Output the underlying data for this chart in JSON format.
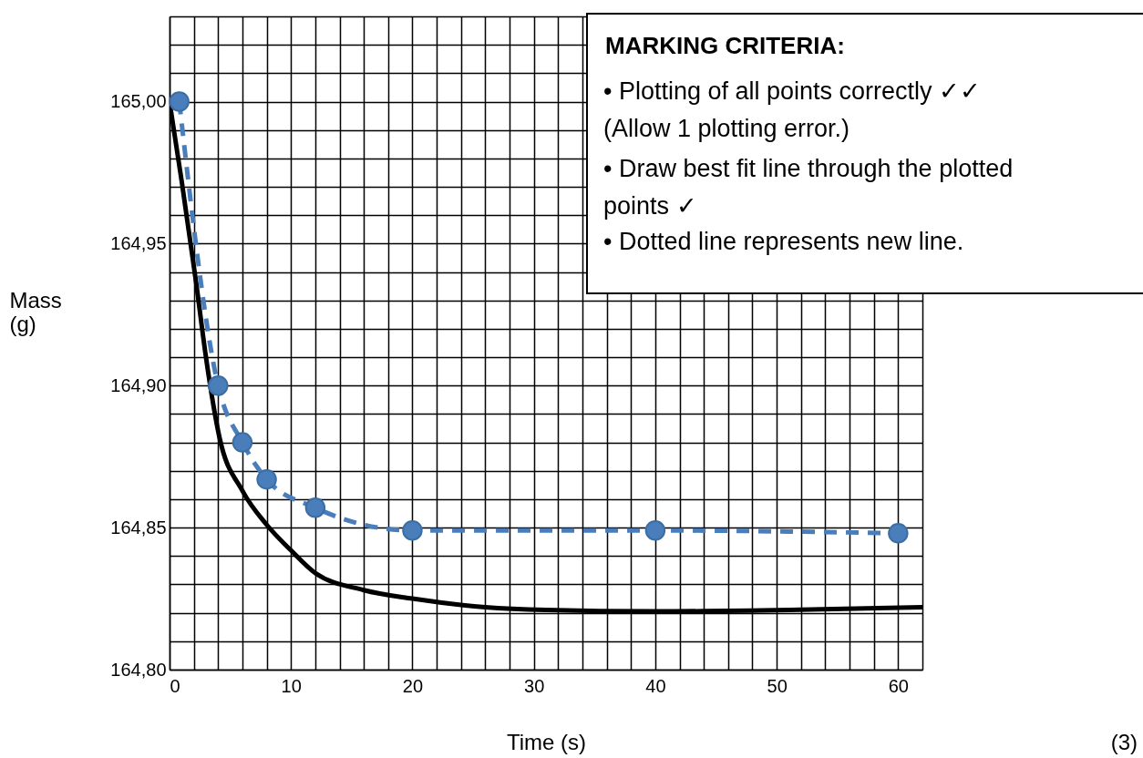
{
  "chart_data": {
    "type": "line",
    "xlabel": "Time (s)",
    "ylabel": "Mass (g)",
    "xlim": [
      0,
      62
    ],
    "ylim": [
      164.8,
      165.03
    ],
    "xticks": [
      0,
      {
        "value": 2,
        "label": null
      },
      {
        "value": 4,
        "label": null
      },
      {
        "value": 6,
        "label": null
      },
      {
        "value": 8,
        "label": null
      },
      10,
      {
        "value": 12,
        "label": null
      },
      {
        "value": 14,
        "label": null
      },
      {
        "value": 16,
        "label": null
      },
      {
        "value": 18,
        "label": null
      },
      20,
      {
        "value": 22,
        "label": null
      },
      {
        "value": 24,
        "label": null
      },
      {
        "value": 26,
        "label": null
      },
      {
        "value": 28,
        "label": null
      },
      30,
      {
        "value": 32,
        "label": null
      },
      {
        "value": 34,
        "label": null
      },
      {
        "value": 36,
        "label": null
      },
      {
        "value": 38,
        "label": null
      },
      40,
      {
        "value": 42,
        "label": null
      },
      {
        "value": 44,
        "label": null
      },
      {
        "value": 46,
        "label": null
      },
      {
        "value": 48,
        "label": null
      },
      50,
      {
        "value": 52,
        "label": null
      },
      {
        "value": 54,
        "label": null
      },
      {
        "value": 56,
        "label": null
      },
      {
        "value": 58,
        "label": null
      },
      60,
      {
        "value": 62,
        "label": null
      }
    ],
    "yticks": [
      {
        "value": 164.8,
        "label": "164,80"
      },
      {
        "value": 164.81,
        "label": null
      },
      {
        "value": 164.82,
        "label": null
      },
      {
        "value": 164.83,
        "label": null
      },
      {
        "value": 164.84,
        "label": null
      },
      {
        "value": 164.85,
        "label": "164,85"
      },
      {
        "value": 164.86,
        "label": null
      },
      {
        "value": 164.87,
        "label": null
      },
      {
        "value": 164.88,
        "label": null
      },
      {
        "value": 164.89,
        "label": null
      },
      {
        "value": 164.9,
        "label": "164,90"
      },
      {
        "value": 164.91,
        "label": null
      },
      {
        "value": 164.92,
        "label": null
      },
      {
        "value": 164.93,
        "label": null
      },
      {
        "value": 164.94,
        "label": null
      },
      {
        "value": 164.95,
        "label": "164,95"
      },
      {
        "value": 164.96,
        "label": null
      },
      {
        "value": 164.97,
        "label": null
      },
      {
        "value": 164.98,
        "label": null
      },
      {
        "value": 164.99,
        "label": null
      },
      {
        "value": 165.0,
        "label": "165,00"
      },
      {
        "value": 165.01,
        "label": null
      },
      {
        "value": 165.02,
        "label": null
      },
      {
        "value": 165.03,
        "label": null
      }
    ],
    "grid": true,
    "series": [
      {
        "color": "#000000",
        "marker": "none",
        "line_style": "solid",
        "x": [
          0,
          1,
          2.2,
          3,
          4.1,
          6,
          8,
          10,
          12,
          16,
          20,
          26,
          31,
          40,
          51,
          62
        ],
        "values": [
          165.0,
          164.972,
          164.936,
          164.91,
          164.882,
          164.863,
          164.851,
          164.842,
          164.834,
          164.828,
          164.825,
          164.822,
          164.821,
          164.8205,
          164.821,
          164.822
        ]
      },
      {
        "color": "#4a7ebb",
        "marker": "circle",
        "line_style": "dashed",
        "x": [
          0.8,
          4,
          6,
          8,
          12,
          20,
          40,
          60
        ],
        "values": [
          165.0,
          164.9,
          164.88,
          164.867,
          164.857,
          164.849,
          164.849,
          164.848
        ]
      }
    ],
    "annotations": [
      "MARKING CRITERIA:",
      "•  Plotting of all points correctly ✓✓\n    (Allow 1 plotting error.)",
      "•  Draw best fit line through the plotted\n    points  ✓",
      "•  Dotted line represents new line.",
      "(3)"
    ]
  }
}
